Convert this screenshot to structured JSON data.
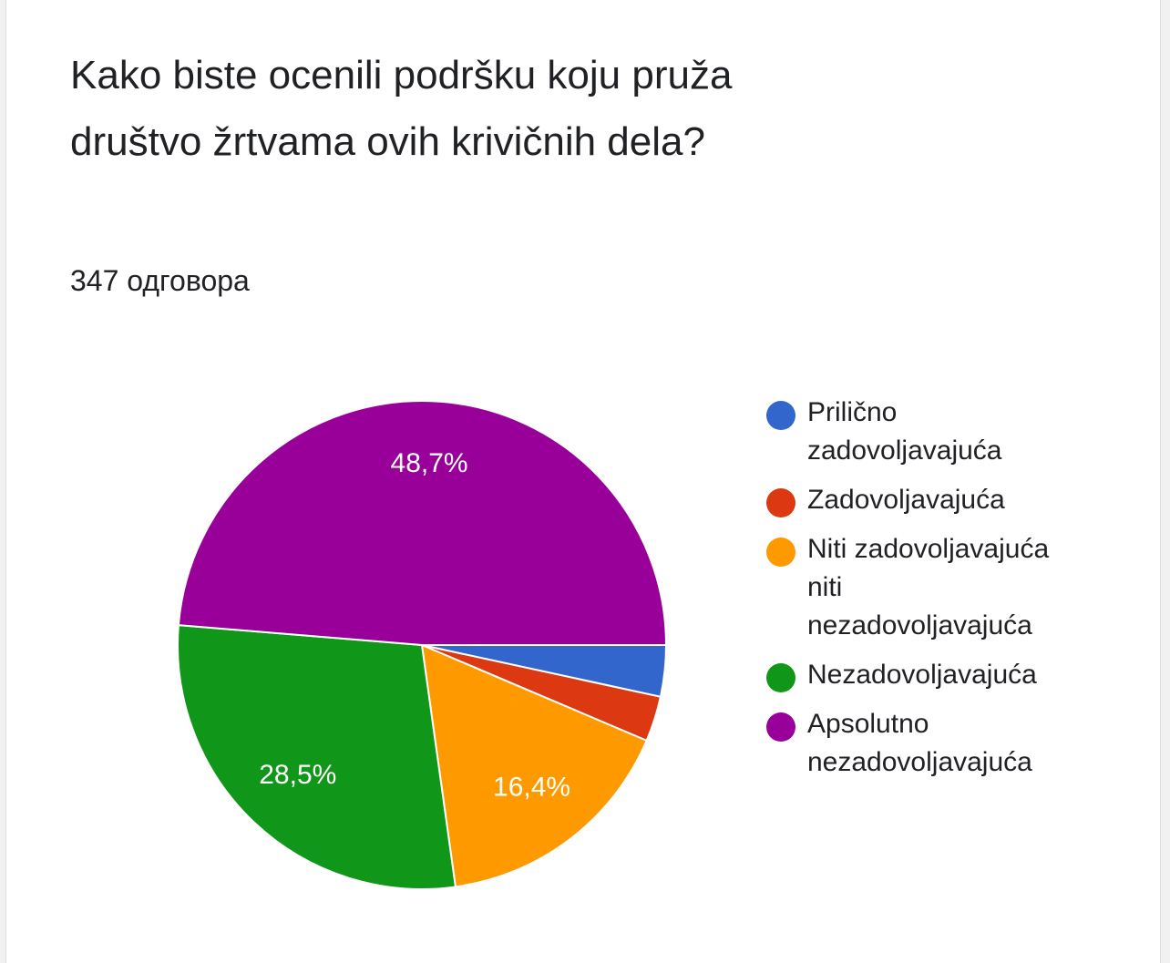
{
  "chart_data": {
    "type": "pie",
    "title": "Kako biste ocenili podršku koju pruža društvo žrtvama ovih krivičnih dela?",
    "subtitle": "347 одговора",
    "categories": [
      "Prilično zadovoljavajuća",
      "Zadovoljavajuća",
      "Niti zadovoljavajuća niti nezadovoljavajuća",
      "Nezadovoljavajuća",
      "Apsolutno nezadovoljavajuća"
    ],
    "values": [
      3.4,
      3.0,
      16.4,
      28.5,
      48.7
    ],
    "value_labels": [
      null,
      null,
      "16,4%",
      "28,5%",
      "48,7%"
    ],
    "colors": [
      "#3366cc",
      "#dc3912",
      "#ff9900",
      "#109618",
      "#990099"
    ],
    "legend": "right"
  }
}
